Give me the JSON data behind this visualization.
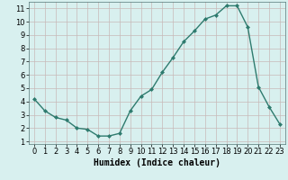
{
  "x": [
    0,
    1,
    2,
    3,
    4,
    5,
    6,
    7,
    8,
    9,
    10,
    11,
    12,
    13,
    14,
    15,
    16,
    17,
    18,
    19,
    20,
    21,
    22,
    23
  ],
  "y": [
    4.2,
    3.3,
    2.8,
    2.6,
    2.0,
    1.9,
    1.4,
    1.4,
    1.6,
    3.3,
    4.4,
    4.9,
    6.2,
    7.3,
    8.5,
    9.3,
    10.2,
    10.5,
    11.2,
    11.2,
    9.6,
    5.1,
    3.6,
    2.3
  ],
  "line_color": "#2e7b6e",
  "marker": "D",
  "marker_size": 2,
  "bg_color": "#d8f0ef",
  "grid_color": "#c8b8b8",
  "xlabel": "Humidex (Indice chaleur)",
  "xlim": [
    -0.5,
    23.5
  ],
  "ylim": [
    0.8,
    11.5
  ],
  "yticks": [
    1,
    2,
    3,
    4,
    5,
    6,
    7,
    8,
    9,
    10,
    11
  ],
  "xticks": [
    0,
    1,
    2,
    3,
    4,
    5,
    6,
    7,
    8,
    9,
    10,
    11,
    12,
    13,
    14,
    15,
    16,
    17,
    18,
    19,
    20,
    21,
    22,
    23
  ],
  "xlabel_fontsize": 7,
  "tick_fontsize": 6,
  "line_width": 1.0
}
